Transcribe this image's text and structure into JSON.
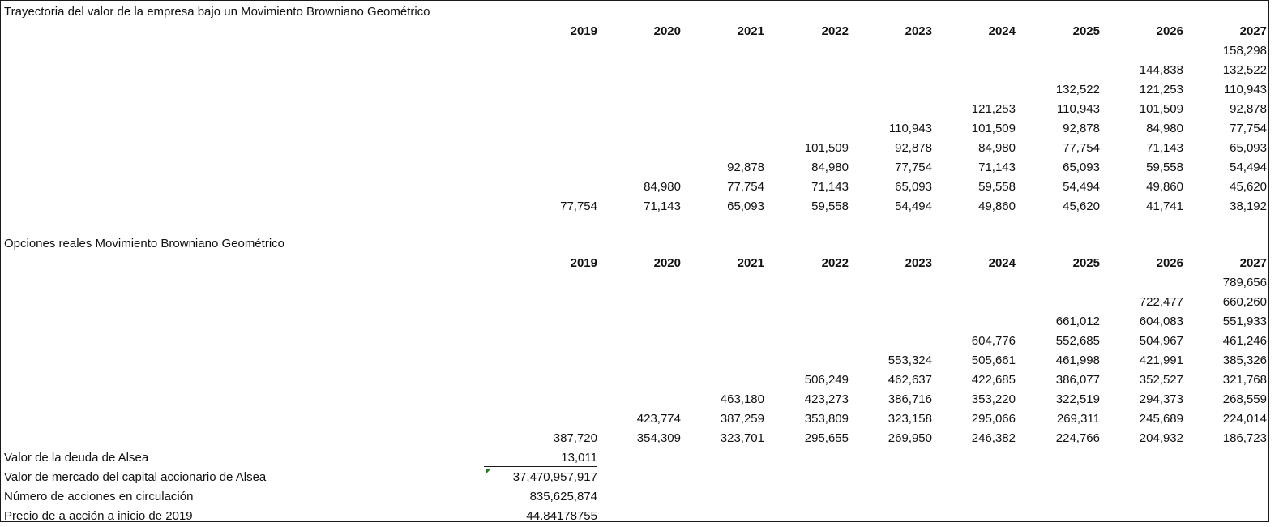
{
  "years": [
    "2019",
    "2020",
    "2021",
    "2022",
    "2023",
    "2024",
    "2025",
    "2026",
    "2027"
  ],
  "section1": {
    "title": "Trayectoria del valor de la empresa bajo un Movimiento Browniano Geométrico",
    "rows": [
      [
        "",
        "",
        "",
        "",
        "",
        "",
        "",
        "",
        "158,298"
      ],
      [
        "",
        "",
        "",
        "",
        "",
        "",
        "",
        "144,838",
        "132,522"
      ],
      [
        "",
        "",
        "",
        "",
        "",
        "",
        "132,522",
        "121,253",
        "110,943"
      ],
      [
        "",
        "",
        "",
        "",
        "",
        "121,253",
        "110,943",
        "101,509",
        "92,878"
      ],
      [
        "",
        "",
        "",
        "",
        "110,943",
        "101,509",
        "92,878",
        "84,980",
        "77,754"
      ],
      [
        "",
        "",
        "",
        "101,509",
        "92,878",
        "84,980",
        "77,754",
        "71,143",
        "65,093"
      ],
      [
        "",
        "",
        "92,878",
        "84,980",
        "77,754",
        "71,143",
        "65,093",
        "59,558",
        "54,494"
      ],
      [
        "",
        "84,980",
        "77,754",
        "71,143",
        "65,093",
        "59,558",
        "54,494",
        "49,860",
        "45,620"
      ],
      [
        "77,754",
        "71,143",
        "65,093",
        "59,558",
        "54,494",
        "49,860",
        "45,620",
        "41,741",
        "38,192"
      ]
    ]
  },
  "section2": {
    "title": "Opciones reales Movimiento Browniano Geométrico",
    "rows": [
      [
        "",
        "",
        "",
        "",
        "",
        "",
        "",
        "",
        "789,656"
      ],
      [
        "",
        "",
        "",
        "",
        "",
        "",
        "",
        "722,477",
        "660,260"
      ],
      [
        "",
        "",
        "",
        "",
        "",
        "",
        "661,012",
        "604,083",
        "551,933"
      ],
      [
        "",
        "",
        "",
        "",
        "",
        "604,776",
        "552,685",
        "504,967",
        "461,246"
      ],
      [
        "",
        "",
        "",
        "",
        "553,324",
        "505,661",
        "461,998",
        "421,991",
        "385,326"
      ],
      [
        "",
        "",
        "",
        "506,249",
        "462,637",
        "422,685",
        "386,077",
        "352,527",
        "321,768"
      ],
      [
        "",
        "",
        "463,180",
        "423,273",
        "386,716",
        "353,220",
        "322,519",
        "294,373",
        "268,559"
      ],
      [
        "",
        "423,774",
        "387,259",
        "353,809",
        "323,158",
        "295,066",
        "269,311",
        "245,689",
        "224,014"
      ],
      [
        "387,720",
        "354,309",
        "323,701",
        "295,655",
        "269,950",
        "246,382",
        "224,766",
        "204,932",
        "186,723"
      ]
    ]
  },
  "summary": [
    {
      "label": "Valor de la deuda de Alsea",
      "value": "13,011"
    },
    {
      "label": "Valor de mercado del capital accionario de Alsea",
      "value": "37,470,957,917"
    },
    {
      "label": "Número de acciones en circulación",
      "value": "835,625,874"
    },
    {
      "label": "Precio de a acción a inicio de 2019",
      "value": "44.84178755"
    }
  ],
  "colors": {
    "border": "#1a1a1a",
    "error_indicator": "#1e7b1e"
  }
}
